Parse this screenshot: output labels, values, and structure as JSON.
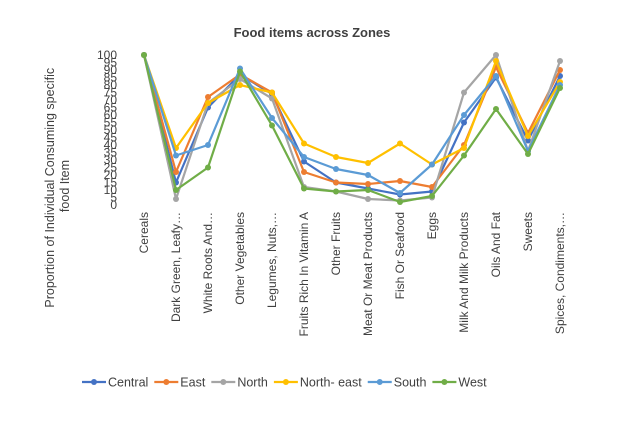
{
  "chart_data": {
    "type": "line",
    "title": "Food items across Zones",
    "ylabel": "Proportion of Individual Consuming specific food Item",
    "xlabel": "",
    "ylim": [
      0,
      100
    ],
    "yticks": [
      0,
      5,
      10,
      15,
      20,
      25,
      30,
      35,
      40,
      45,
      50,
      55,
      60,
      65,
      70,
      75,
      80,
      85,
      90,
      95,
      100
    ],
    "grid": false,
    "legend": "bottom",
    "categories": [
      "Cereals",
      "Dark Green, Leafy…",
      "White Roots And…",
      "Other Vegetables",
      "Legumes, Nuts,…",
      "Fruits Rich In Vitamin A",
      "Other Fruits",
      "Meat Or Meat Products",
      "Fish Or Seafood",
      "Eggs",
      "Milk And Milk Products",
      "Oils And Fat",
      "Sweets",
      "Spices, Condiments,…"
    ],
    "series": [
      {
        "name": "Central",
        "color": "#4472C4",
        "values": [
          100,
          15,
          65,
          87,
          74,
          29,
          15,
          11,
          7,
          9,
          55,
          85,
          43,
          86
        ]
      },
      {
        "name": "East",
        "color": "#ED7D31",
        "values": [
          100,
          22,
          72,
          87,
          75,
          22,
          15,
          14,
          16,
          12,
          40,
          92,
          48,
          90
        ]
      },
      {
        "name": "North",
        "color": "#A5A5A5",
        "values": [
          100,
          4,
          68,
          84,
          71,
          12,
          9,
          4,
          3,
          5,
          75,
          100,
          36,
          96
        ]
      },
      {
        "name": "North- east",
        "color": "#FFC000",
        "values": [
          100,
          38,
          68,
          80,
          75,
          41,
          32,
          28,
          41,
          27,
          38,
          96,
          46,
          82
        ]
      },
      {
        "name": "South",
        "color": "#5B9BD5",
        "values": [
          100,
          33,
          40,
          91,
          58,
          32,
          24,
          20,
          8,
          27,
          60,
          86,
          36,
          80
        ]
      },
      {
        "name": "West",
        "color": "#70AD47",
        "values": [
          100,
          10,
          25,
          89,
          53,
          11,
          9,
          10,
          2,
          6,
          33,
          64,
          34,
          78
        ]
      }
    ]
  }
}
